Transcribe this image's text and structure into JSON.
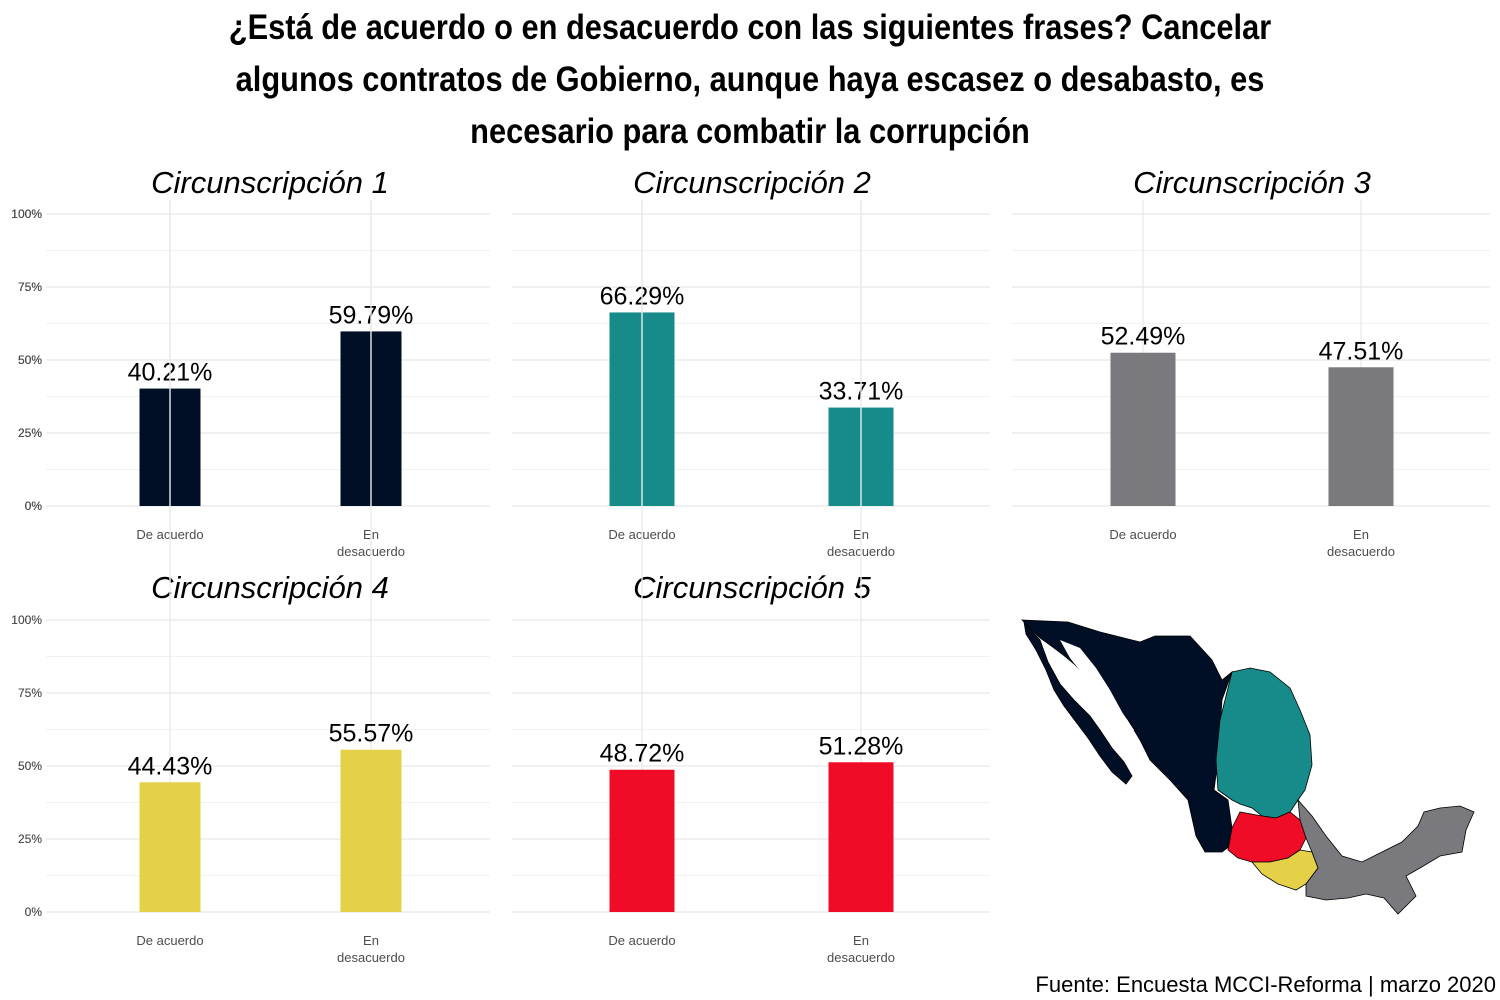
{
  "title_lines": [
    "¿Está de acuerdo o en desacuerdo con las siguientes frases? Cancelar",
    "algunos contratos de Gobierno, aunque haya escasez o desabasto, es",
    "necesario para combatir la corrupción"
  ],
  "source": "Fuente: Encuesta MCCI-Reforma | marzo 2020",
  "map_icon": "mexico-map-icon",
  "chart_data": [
    {
      "type": "bar",
      "title": "Circunscripción 1",
      "categories": [
        "De acuerdo",
        "En desacuerdo"
      ],
      "values": [
        40.21,
        59.79
      ],
      "data_labels": [
        "40.21%",
        "59.79%"
      ],
      "color": "#000f26",
      "ylim": [
        0,
        100
      ],
      "yticks": [
        "0%",
        "25%",
        "50%",
        "75%",
        "100%"
      ],
      "grid": true
    },
    {
      "type": "bar",
      "title": "Circunscripción 2",
      "categories": [
        "De acuerdo",
        "En desacuerdo"
      ],
      "values": [
        66.29,
        33.71
      ],
      "data_labels": [
        "66.29%",
        "33.71%"
      ],
      "color": "#178b8a",
      "ylim": [
        0,
        100
      ],
      "yticks": [
        "0%",
        "25%",
        "50%",
        "75%",
        "100%"
      ],
      "grid": true
    },
    {
      "type": "bar",
      "title": "Circunscripción 3",
      "categories": [
        "De acuerdo",
        "En desacuerdo"
      ],
      "values": [
        52.49,
        47.51
      ],
      "data_labels": [
        "52.49%",
        "47.51%"
      ],
      "color": "#7a7a7e",
      "ylim": [
        0,
        100
      ],
      "yticks": [
        "0%",
        "25%",
        "50%",
        "75%",
        "100%"
      ],
      "grid": true
    },
    {
      "type": "bar",
      "title": "Circunscripción 4",
      "categories": [
        "De acuerdo",
        "En desacuerdo"
      ],
      "values": [
        44.43,
        55.57
      ],
      "data_labels": [
        "44.43%",
        "55.57%"
      ],
      "color": "#e5d148",
      "ylim": [
        0,
        100
      ],
      "yticks": [
        "0%",
        "25%",
        "50%",
        "75%",
        "100%"
      ],
      "grid": true
    },
    {
      "type": "bar",
      "title": "Circunscripción 5",
      "categories": [
        "De acuerdo",
        "En desacuerdo"
      ],
      "values": [
        48.72,
        51.28
      ],
      "data_labels": [
        "48.72%",
        "51.28%"
      ],
      "color": "#f00b27",
      "ylim": [
        0,
        100
      ],
      "yticks": [
        "0%",
        "25%",
        "50%",
        "75%",
        "100%"
      ],
      "grid": true
    }
  ]
}
